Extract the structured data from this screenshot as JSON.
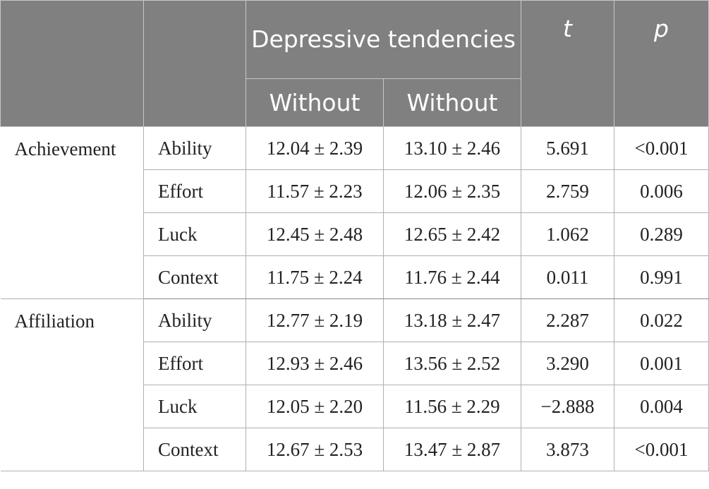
{
  "header": {
    "col1": "",
    "col2": "",
    "group_title": "Depressive tendencies",
    "sub_col1": "Without",
    "sub_col2": "Without",
    "t_label": "t",
    "p_label": "p"
  },
  "groups": [
    {
      "name": "Achievement",
      "rows": [
        {
          "item": "Ability",
          "v1": "12.04 ± 2.39",
          "v2": "13.10 ± 2.46",
          "t": "5.691",
          "p": "<0.001"
        },
        {
          "item": "Effort",
          "v1": "11.57 ± 2.23",
          "v2": "12.06 ± 2.35",
          "t": "2.759",
          "p": "0.006"
        },
        {
          "item": "Luck",
          "v1": "12.45 ± 2.48",
          "v2": "12.65 ± 2.42",
          "t": "1.062",
          "p": "0.289"
        },
        {
          "item": "Context",
          "v1": "11.75 ± 2.24",
          "v2": "11.76 ± 2.44",
          "t": "0.011",
          "p": "0.991"
        }
      ]
    },
    {
      "name": "Affiliation",
      "rows": [
        {
          "item": "Ability",
          "v1": "12.77 ± 2.19",
          "v2": "13.18 ± 2.47",
          "t": "2.287",
          "p": "0.022"
        },
        {
          "item": "Effort",
          "v1": "12.93 ± 2.46",
          "v2": "13.56 ± 2.52",
          "t": "3.290",
          "p": "0.001"
        },
        {
          "item": "Luck",
          "v1": "12.05 ± 2.20",
          "v2": "11.56 ± 2.29",
          "t": "−2.888",
          "p": "0.004"
        },
        {
          "item": "Context",
          "v1": "12.67 ± 2.53",
          "v2": "13.47 ± 2.87",
          "t": "3.873",
          "p": "<0.001"
        }
      ]
    }
  ],
  "colors": {
    "header_bg": "#808080",
    "header_text": "#ffffff",
    "border": "#b0b0b0"
  }
}
